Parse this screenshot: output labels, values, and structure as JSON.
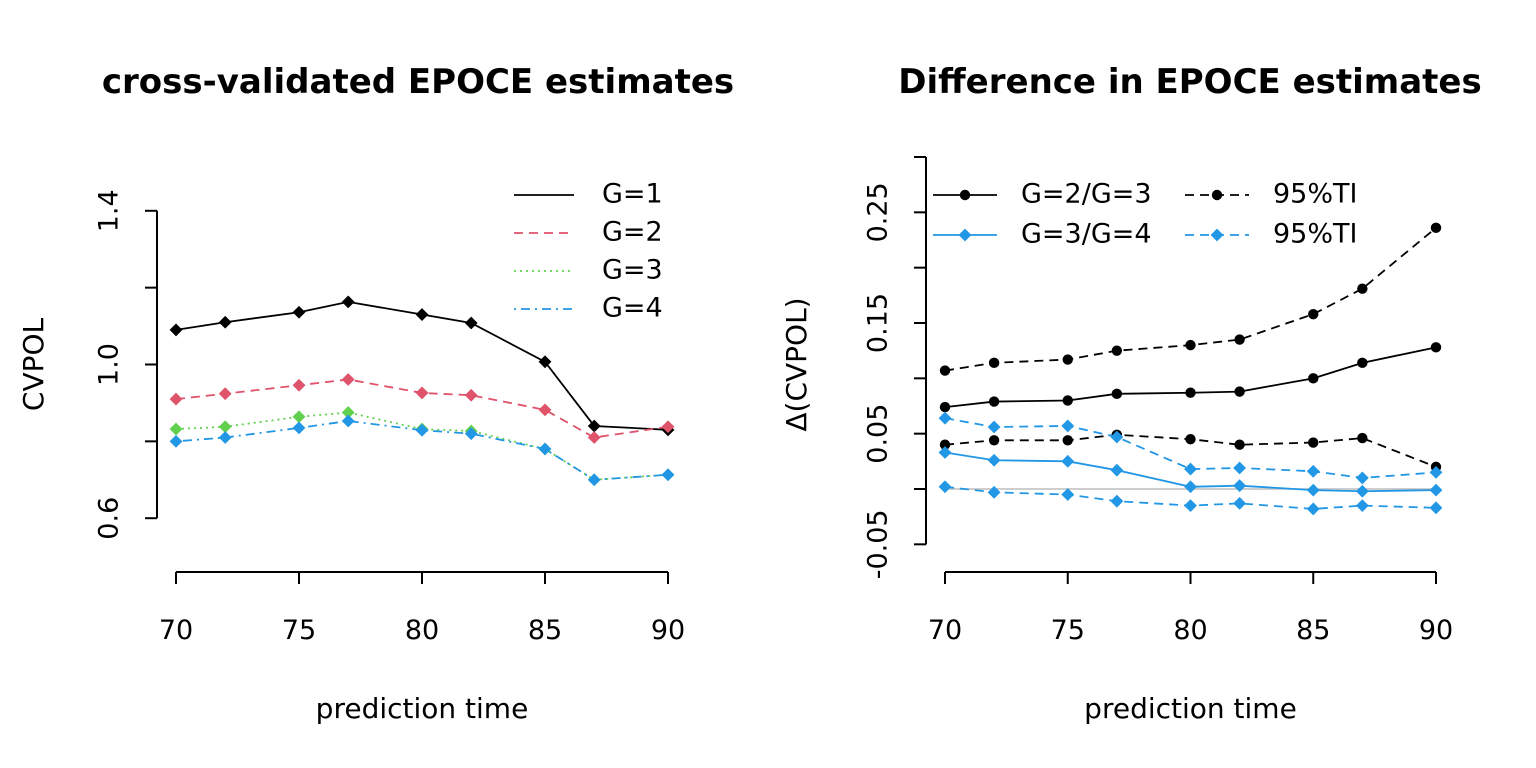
{
  "chart_data": [
    {
      "type": "line",
      "title": "cross-validated EPOCE estimates",
      "xlabel": "prediction time",
      "ylabel": "CVPOL",
      "xlim": [
        70,
        90
      ],
      "ylim": [
        0.46,
        1.54
      ],
      "x_ticks": [
        70,
        75,
        80,
        85,
        90
      ],
      "y_ticks": [
        0.6,
        0.8,
        1.0,
        1.2,
        1.4
      ],
      "y_tick_labels": [
        "0.6",
        "",
        "1.0",
        "",
        "1.4"
      ],
      "legend_position": "top-right",
      "x": [
        70,
        72,
        75,
        77,
        80,
        82,
        85,
        87,
        90
      ],
      "series": [
        {
          "name": "G=1",
          "color": "#000000",
          "dash": "solid",
          "marker": "diamond",
          "values": [
            1.09,
            1.11,
            1.136,
            1.163,
            1.13,
            1.108,
            1.007,
            0.84,
            0.83
          ]
        },
        {
          "name": "G=2",
          "color": "#DF536B",
          "dash": "dashed",
          "marker": "diamond",
          "values": [
            0.91,
            0.924,
            0.946,
            0.961,
            0.926,
            0.92,
            0.882,
            0.81,
            0.838
          ]
        },
        {
          "name": "G=3",
          "color": "#61D04F",
          "dash": "dotted",
          "marker": "diamond",
          "values": [
            0.832,
            0.838,
            0.864,
            0.875,
            0.832,
            0.827,
            0.78,
            0.7,
            0.713
          ]
        },
        {
          "name": "G=4",
          "color": "#2297E6",
          "dash": "dotdash",
          "marker": "diamond",
          "values": [
            0.8,
            0.81,
            0.835,
            0.853,
            0.829,
            0.82,
            0.78,
            0.7,
            0.713
          ]
        }
      ]
    },
    {
      "type": "line",
      "title": "Difference in EPOCE estimates",
      "xlabel": "prediction time",
      "ylabel": "Δ(CVPOL)",
      "xlim": [
        70,
        90
      ],
      "ylim": [
        -0.075,
        0.3
      ],
      "x_ticks": [
        70,
        75,
        80,
        85,
        90
      ],
      "y_ticks": [
        -0.05,
        0,
        0.05,
        0.1,
        0.15,
        0.2,
        0.25,
        0.3
      ],
      "y_tick_labels": [
        "-0.05",
        "",
        "0.05",
        "",
        "0.15",
        "",
        "0.25",
        ""
      ],
      "reference_line": {
        "y": 0,
        "color": "#BEBEBE"
      },
      "legend_position": "top-left",
      "x": [
        70,
        72,
        75,
        77,
        80,
        82,
        85,
        87,
        90
      ],
      "series": [
        {
          "name": "G=2/G=3",
          "color": "#000000",
          "dash": "solid",
          "marker": "circle",
          "values": [
            0.074,
            0.079,
            0.08,
            0.086,
            0.087,
            0.088,
            0.1,
            0.114,
            0.128
          ]
        },
        {
          "name": "95%TI",
          "color": "#000000",
          "dash": "dashed",
          "marker": "circle",
          "values": [
            0.107,
            0.114,
            0.117,
            0.125,
            0.13,
            0.135,
            0.158,
            0.181,
            0.236
          ]
        },
        {
          "name": "",
          "color": "#000000",
          "dash": "dashed",
          "marker": "circle",
          "values": [
            0.04,
            0.044,
            0.044,
            0.049,
            0.045,
            0.04,
            0.042,
            0.046,
            0.02
          ]
        },
        {
          "name": "G=3/G=4",
          "color": "#2297E6",
          "dash": "solid",
          "marker": "diamond",
          "values": [
            0.033,
            0.026,
            0.025,
            0.017,
            0.002,
            0.003,
            -0.001,
            -0.002,
            -0.001
          ]
        },
        {
          "name": "95%TI",
          "color": "#2297E6",
          "dash": "dashed",
          "marker": "diamond",
          "values": [
            0.064,
            0.056,
            0.057,
            0.047,
            0.018,
            0.019,
            0.016,
            0.01,
            0.015
          ]
        },
        {
          "name": "",
          "color": "#2297E6",
          "dash": "dashed",
          "marker": "diamond",
          "values": [
            0.002,
            -0.003,
            -0.005,
            -0.011,
            -0.015,
            -0.013,
            -0.018,
            -0.015,
            -0.017
          ]
        }
      ]
    }
  ]
}
